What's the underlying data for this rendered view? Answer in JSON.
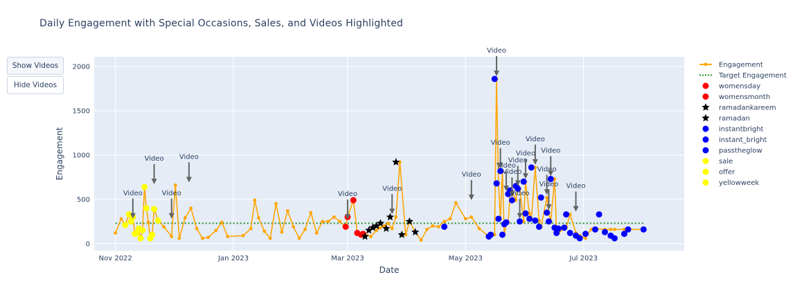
{
  "title": "Daily Engagement with Special Occasions, Sales, and Videos Highlighted",
  "buttons": {
    "show_videos": "Show Videos",
    "hide_videos": "Hide Videos"
  },
  "colors": {
    "engagement": "#ffa500",
    "target": "#228b22",
    "womens": "#ff0000",
    "ramadan": "#000000",
    "instant": "#0000ff",
    "sale": "#ffff00",
    "plot_bg": "#e5ecf6",
    "arrow": "#636363"
  },
  "chart_data": {
    "type": "line",
    "title": "Daily Engagement with Special Occasions, Sales, and Videos Highlighted",
    "xlabel": "Date",
    "ylabel": "Engagement",
    "x_ticks": [
      "Nov 2022",
      "Jan 2023",
      "Mar 2023",
      "May 2023",
      "Jul 2023"
    ],
    "y_ticks": [
      "0",
      "500",
      "1000",
      "1500",
      "2000"
    ],
    "x_tick_dates": [
      "2022-11-01",
      "2023-01-01",
      "2023-03-01",
      "2023-05-01",
      "2023-07-01"
    ],
    "y_tick_values": [
      0,
      500,
      1000,
      1500,
      2000
    ],
    "xlim": [
      "2022-10-21",
      "2023-08-22"
    ],
    "ylim": [
      -80,
      2110
    ],
    "grid": true,
    "legend_position": "right",
    "target_value": 230,
    "legend": [
      {
        "name": "Engagement",
        "kind": "line-marker",
        "color": "#ffa500"
      },
      {
        "name": "Target Engagement",
        "kind": "dotted",
        "color": "#228b22"
      },
      {
        "name": "womensday",
        "kind": "circle",
        "color": "#ff0000"
      },
      {
        "name": "womensmonth",
        "kind": "circle",
        "color": "#ff0000"
      },
      {
        "name": "ramadankareem",
        "kind": "star",
        "color": "#000000"
      },
      {
        "name": "ramadan",
        "kind": "star",
        "color": "#000000"
      },
      {
        "name": "instantbright",
        "kind": "circle",
        "color": "#0000ff"
      },
      {
        "name": "instant_bright",
        "kind": "circle",
        "color": "#0000ff"
      },
      {
        "name": "passtheglow",
        "kind": "circle",
        "color": "#0000ff"
      },
      {
        "name": "sale",
        "kind": "circle",
        "color": "#ffff00"
      },
      {
        "name": "offer",
        "kind": "circle",
        "color": "#ffff00"
      },
      {
        "name": "yellowweek",
        "kind": "circle",
        "color": "#ffff00"
      }
    ],
    "engagement": {
      "x": [
        "2022-11-01",
        "2022-11-04",
        "2022-11-06",
        "2022-11-08",
        "2022-11-09",
        "2022-11-10",
        "2022-11-11",
        "2022-11-12",
        "2022-11-13",
        "2022-11-14",
        "2022-11-15",
        "2022-11-16",
        "2022-11-17",
        "2022-11-18",
        "2022-11-19",
        "2022-11-20",
        "2022-11-21",
        "2022-11-23",
        "2022-11-26",
        "2022-11-30",
        "2022-12-02",
        "2022-12-04",
        "2022-12-07",
        "2022-12-10",
        "2022-12-13",
        "2022-12-16",
        "2022-12-19",
        "2022-12-23",
        "2022-12-26",
        "2022-12-29",
        "2023-01-06",
        "2023-01-10",
        "2023-01-12",
        "2023-01-14",
        "2023-01-17",
        "2023-01-20",
        "2023-01-23",
        "2023-01-26",
        "2023-01-29",
        "2023-02-01",
        "2023-02-04",
        "2023-02-07",
        "2023-02-10",
        "2023-02-13",
        "2023-02-16",
        "2023-02-19",
        "2023-02-22",
        "2023-02-25",
        "2023-02-28",
        "2023-03-01",
        "2023-03-04",
        "2023-03-06",
        "2023-03-09",
        "2023-03-10",
        "2023-03-13",
        "2023-03-16",
        "2023-03-18",
        "2023-03-20",
        "2023-03-22",
        "2023-03-24",
        "2023-03-26",
        "2023-03-28",
        "2023-03-31",
        "2023-04-02",
        "2023-04-05",
        "2023-04-08",
        "2023-04-11",
        "2023-04-14",
        "2023-04-17",
        "2023-04-20",
        "2023-04-23",
        "2023-04-26",
        "2023-05-01",
        "2023-05-04",
        "2023-05-08",
        "2023-05-13",
        "2023-05-16",
        "2023-05-17",
        "2023-05-18",
        "2023-05-19",
        "2023-05-20",
        "2023-05-21",
        "2023-05-22",
        "2023-05-23",
        "2023-05-24",
        "2023-05-25",
        "2023-05-27",
        "2023-05-28",
        "2023-05-29",
        "2023-05-31",
        "2023-06-01",
        "2023-06-03",
        "2023-06-04",
        "2023-06-06",
        "2023-06-08",
        "2023-06-09",
        "2023-06-12",
        "2023-06-13",
        "2023-06-14",
        "2023-06-16",
        "2023-06-17",
        "2023-06-18",
        "2023-06-21",
        "2023-06-22",
        "2023-06-24",
        "2023-06-27",
        "2023-06-29",
        "2023-07-02",
        "2023-07-03",
        "2023-07-05",
        "2023-07-07",
        "2023-07-12",
        "2023-07-15",
        "2023-07-17",
        "2023-07-22",
        "2023-07-24",
        "2023-08-01"
      ],
      "y": [
        120,
        280,
        210,
        330,
        250,
        300,
        110,
        120,
        170,
        60,
        150,
        640,
        400,
        240,
        60,
        100,
        390,
        260,
        190,
        80,
        660,
        60,
        290,
        400,
        170,
        60,
        70,
        150,
        240,
        80,
        90,
        170,
        490,
        290,
        140,
        60,
        450,
        130,
        370,
        190,
        60,
        160,
        350,
        120,
        250,
        250,
        300,
        250,
        190,
        300,
        490,
        120,
        100,
        110,
        80,
        150,
        180,
        200,
        230,
        170,
        300,
        920,
        100,
        250,
        130,
        40,
        160,
        200,
        190,
        250,
        280,
        460,
        280,
        300,
        170,
        80,
        100,
        1860,
        680,
        280,
        820,
        100,
        220,
        240,
        560,
        600,
        490,
        650,
        620,
        250,
        700,
        340,
        280,
        860,
        260,
        190,
        520,
        350,
        250,
        730,
        180,
        120,
        170,
        180,
        330,
        120,
        90,
        60,
        110,
        160,
        170,
        160,
        160,
        160,
        160,
        160,
        160
      ]
    },
    "target": {
      "x": [
        "2022-11-01",
        "2023-08-01"
      ],
      "y": [
        230,
        230
      ]
    },
    "highlights": {
      "womens": {
        "x": [
          "2023-02-28",
          "2023-03-01",
          "2023-03-04",
          "2023-03-06",
          "2023-03-08",
          "2023-03-09"
        ],
        "y": [
          190,
          300,
          490,
          120,
          100,
          110
        ]
      },
      "ramadan": {
        "x": [
          "2023-03-10",
          "2023-03-12",
          "2023-03-14",
          "2023-03-16",
          "2023-03-18",
          "2023-03-21",
          "2023-03-23",
          "2023-03-26",
          "2023-03-29",
          "2023-04-02",
          "2023-04-05"
        ],
        "y": [
          80,
          150,
          180,
          200,
          230,
          170,
          300,
          920,
          100,
          250,
          130
        ]
      },
      "instant": {
        "x": [
          "2023-04-20",
          "2023-05-13",
          "2023-05-14",
          "2023-05-16",
          "2023-05-17",
          "2023-05-18",
          "2023-05-19",
          "2023-05-20",
          "2023-05-21",
          "2023-05-22",
          "2023-05-23",
          "2023-05-24",
          "2023-05-25",
          "2023-05-27",
          "2023-05-28",
          "2023-05-29",
          "2023-05-31",
          "2023-06-01",
          "2023-06-03",
          "2023-06-04",
          "2023-06-06",
          "2023-06-08",
          "2023-06-09",
          "2023-06-12",
          "2023-06-13",
          "2023-06-14",
          "2023-06-16",
          "2023-06-17",
          "2023-06-18",
          "2023-06-21",
          "2023-06-22",
          "2023-06-24",
          "2023-06-27",
          "2023-06-29",
          "2023-07-02",
          "2023-07-07",
          "2023-07-09",
          "2023-07-12",
          "2023-07-15",
          "2023-07-17",
          "2023-07-22",
          "2023-07-24",
          "2023-08-01"
        ],
        "y": [
          190,
          80,
          100,
          1860,
          680,
          280,
          820,
          100,
          220,
          240,
          560,
          600,
          490,
          650,
          620,
          250,
          700,
          340,
          280,
          860,
          260,
          190,
          520,
          350,
          250,
          730,
          180,
          120,
          170,
          180,
          330,
          120,
          90,
          60,
          110,
          160,
          330,
          130,
          90,
          60,
          110,
          160,
          160
        ]
      },
      "sale": {
        "x": [
          "2022-11-06",
          "2022-11-08",
          "2022-11-09",
          "2022-11-10",
          "2022-11-11",
          "2022-11-12",
          "2022-11-13",
          "2022-11-14",
          "2022-11-15",
          "2022-11-16",
          "2022-11-17",
          "2022-11-19",
          "2022-11-20",
          "2022-11-21",
          "2022-11-23"
        ],
        "y": [
          210,
          330,
          250,
          300,
          110,
          120,
          170,
          60,
          150,
          640,
          400,
          60,
          100,
          390,
          260
        ]
      }
    },
    "annotations": [
      {
        "label": "Video",
        "x": "2022-11-10",
        "y": 250
      },
      {
        "label": "Video",
        "x": "2022-11-21",
        "y": 640
      },
      {
        "label": "Video",
        "x": "2022-11-30",
        "y": 250
      },
      {
        "label": "Video",
        "x": "2022-12-09",
        "y": 660
      },
      {
        "label": "Video",
        "x": "2023-03-01",
        "y": 240
      },
      {
        "label": "Video",
        "x": "2023-03-24",
        "y": 300
      },
      {
        "label": "Video",
        "x": "2023-05-04",
        "y": 460
      },
      {
        "label": "Video",
        "x": "2023-05-17",
        "y": 1860
      },
      {
        "label": "Video",
        "x": "2023-05-19",
        "y": 820
      },
      {
        "label": "Video",
        "x": "2023-05-22",
        "y": 560
      },
      {
        "label": "Video",
        "x": "2023-05-25",
        "y": 490
      },
      {
        "label": "Video",
        "x": "2023-05-28",
        "y": 620
      },
      {
        "label": "Video",
        "x": "2023-05-29",
        "y": 250
      },
      {
        "label": "Video",
        "x": "2023-06-01",
        "y": 700
      },
      {
        "label": "Video",
        "x": "2023-06-06",
        "y": 860
      },
      {
        "label": "Video",
        "x": "2023-06-12",
        "y": 520
      },
      {
        "label": "Video",
        "x": "2023-06-13",
        "y": 350
      },
      {
        "label": "Video",
        "x": "2023-06-14",
        "y": 730
      },
      {
        "label": "Video",
        "x": "2023-06-27",
        "y": 330
      }
    ]
  }
}
